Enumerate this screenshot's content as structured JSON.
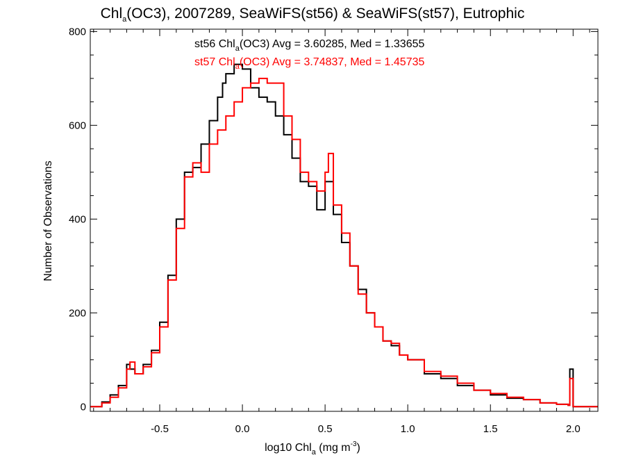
{
  "chart_data": {
    "type": "line",
    "step": true,
    "title": {
      "prefix": "Chl",
      "sub": "a",
      "suffix": "(OC3), 2007289, SeaWiFS(st56) & SeaWiFS(st57), Eutrophic"
    },
    "xlabel": {
      "prefix": "log10 Chl",
      "sub": "a",
      "mid": " (mg m",
      "sup": "-3",
      "suffix": ")"
    },
    "ylabel": "Number of Observations",
    "xlim": [
      -0.92,
      2.15
    ],
    "ylim": [
      -10,
      805
    ],
    "xticks": [
      -0.5,
      0.0,
      0.5,
      1.0,
      1.5,
      2.0
    ],
    "xtick_labels": [
      "-0.5",
      "0.0",
      "0.5",
      "1.0",
      "1.5",
      "2.0"
    ],
    "yticks": [
      0,
      200,
      400,
      600,
      800
    ],
    "ytick_labels": [
      "0",
      "200",
      "400",
      "600",
      "800"
    ],
    "annotations": [
      {
        "prefix": "st56 Chl",
        "sub": "a",
        "suffix": "(OC3) Avg = 3.60285, Med = 1.33655",
        "color": "#000000"
      },
      {
        "prefix": "st57 Chl",
        "sub": "a",
        "suffix": "(OC3) Avg = 3.74837, Med = 1.45735",
        "color": "#ff0000"
      }
    ],
    "series": [
      {
        "color": "#000000",
        "x": [
          -0.92,
          -0.85,
          -0.8,
          -0.75,
          -0.7,
          -0.68,
          -0.65,
          -0.6,
          -0.55,
          -0.5,
          -0.45,
          -0.4,
          -0.35,
          -0.3,
          -0.25,
          -0.2,
          -0.15,
          -0.12,
          -0.1,
          -0.05,
          0.0,
          0.05,
          0.1,
          0.15,
          0.2,
          0.25,
          0.3,
          0.35,
          0.4,
          0.45,
          0.5,
          0.55,
          0.6,
          0.65,
          0.7,
          0.75,
          0.8,
          0.85,
          0.9,
          0.95,
          1.0,
          1.1,
          1.2,
          1.3,
          1.4,
          1.5,
          1.6,
          1.7,
          1.8,
          1.9,
          1.97,
          1.98,
          2.0,
          2.15
        ],
        "y": [
          0,
          10,
          25,
          45,
          90,
          80,
          70,
          90,
          120,
          180,
          280,
          400,
          500,
          510,
          560,
          610,
          660,
          690,
          710,
          730,
          720,
          680,
          660,
          650,
          620,
          580,
          530,
          480,
          470,
          420,
          480,
          410,
          350,
          300,
          250,
          200,
          170,
          140,
          130,
          110,
          100,
          70,
          60,
          45,
          35,
          25,
          18,
          15,
          8,
          5,
          3,
          80,
          0,
          0
        ]
      },
      {
        "color": "#ff0000",
        "x": [
          -0.92,
          -0.85,
          -0.8,
          -0.75,
          -0.7,
          -0.68,
          -0.65,
          -0.6,
          -0.55,
          -0.5,
          -0.45,
          -0.4,
          -0.35,
          -0.3,
          -0.25,
          -0.2,
          -0.15,
          -0.1,
          -0.05,
          0.0,
          0.05,
          0.1,
          0.15,
          0.2,
          0.25,
          0.3,
          0.35,
          0.4,
          0.45,
          0.5,
          0.52,
          0.55,
          0.6,
          0.65,
          0.7,
          0.75,
          0.8,
          0.85,
          0.9,
          0.95,
          1.0,
          1.1,
          1.2,
          1.3,
          1.4,
          1.5,
          1.6,
          1.7,
          1.8,
          1.9,
          1.97,
          1.98,
          2.0,
          2.15
        ],
        "y": [
          0,
          8,
          20,
          40,
          80,
          95,
          70,
          85,
          115,
          170,
          270,
          380,
          490,
          520,
          500,
          560,
          590,
          620,
          650,
          680,
          690,
          700,
          690,
          690,
          620,
          570,
          500,
          480,
          460,
          500,
          540,
          430,
          370,
          300,
          240,
          200,
          170,
          140,
          135,
          110,
          100,
          75,
          65,
          50,
          35,
          28,
          20,
          15,
          8,
          5,
          3,
          60,
          0,
          0
        ]
      }
    ]
  }
}
